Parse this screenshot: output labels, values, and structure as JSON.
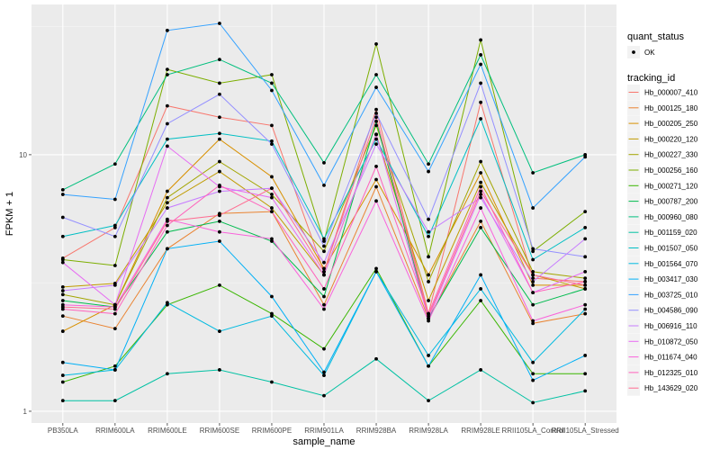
{
  "chart_data": {
    "type": "line",
    "title": "",
    "xlabel": "sample_name",
    "ylabel": "FPKM + 1",
    "y_scale": "log10",
    "ylim": [
      0.9,
      38.5
    ],
    "y_ticks": [
      1,
      10
    ],
    "y_tick_labels": [
      "1",
      "10"
    ],
    "grid": true,
    "legend_position": "right",
    "categories": [
      "PB350LA",
      "RRIM600LA",
      "RRIM600LE",
      "RRIM600SE",
      "RRIM600PE",
      "RRIM901LA",
      "RRIM928BA",
      "RRIM928LA",
      "RRIM928LE",
      "RRII105LA_Control",
      "RRII105LA_Stressed"
    ],
    "shape_legend": {
      "title": "quant_status",
      "items": [
        "OK"
      ]
    },
    "color_legend_title": "tracking_id",
    "series": [
      {
        "name": "Hb_000007_410",
        "color": "#F8766D",
        "values": [
          3.95,
          5.2,
          15.5,
          14.0,
          13.0,
          3.5,
          15.0,
          2.4,
          16.0,
          3.3,
          3.2
        ]
      },
      {
        "name": "Hb_000125_180",
        "color": "#EA8331",
        "values": [
          2.35,
          2.1,
          4.3,
          5.9,
          6.0,
          2.6,
          7.5,
          2.3,
          5.5,
          2.2,
          2.4
        ]
      },
      {
        "name": "Hb_000205_250",
        "color": "#D89000",
        "values": [
          2.05,
          2.6,
          7.2,
          11.5,
          8.2,
          3.6,
          8.0,
          3.4,
          8.5,
          3.1,
          3.1
        ]
      },
      {
        "name": "Hb_000220_120",
        "color": "#C09B00",
        "values": [
          3.05,
          3.15,
          6.5,
          8.6,
          6.2,
          3.4,
          12.0,
          2.7,
          7.8,
          3.4,
          3.0
        ]
      },
      {
        "name": "Hb_000227_330",
        "color": "#A3A500",
        "values": [
          2.85,
          2.6,
          6.8,
          9.4,
          7.0,
          4.2,
          13.0,
          3.2,
          9.4,
          3.5,
          3.3
        ]
      },
      {
        "name": "Hb_000256_160",
        "color": "#7CAE00",
        "values": [
          3.9,
          3.7,
          21.5,
          19.0,
          20.5,
          4.6,
          27.0,
          4.0,
          28.0,
          4.2,
          6.0
        ]
      },
      {
        "name": "Hb_000271_120",
        "color": "#39B600",
        "values": [
          1.3,
          1.5,
          2.6,
          3.1,
          2.4,
          1.75,
          3.6,
          1.5,
          2.7,
          1.4,
          1.4
        ]
      },
      {
        "name": "Hb_000787_200",
        "color": "#00BB4E",
        "values": [
          2.7,
          2.55,
          5.0,
          5.5,
          4.6,
          2.8,
          13.5,
          2.3,
          5.2,
          2.6,
          3.0
        ]
      },
      {
        "name": "Hb_000960_080",
        "color": "#00BF7D",
        "values": [
          7.3,
          9.2,
          20.5,
          23.5,
          19.0,
          9.3,
          20.5,
          9.2,
          24.5,
          8.5,
          10.0
        ]
      },
      {
        "name": "Hb_001159_020",
        "color": "#00C1A3",
        "values": [
          1.1,
          1.1,
          1.4,
          1.45,
          1.3,
          1.15,
          1.6,
          1.1,
          1.45,
          1.08,
          1.2
        ]
      },
      {
        "name": "Hb_001507_050",
        "color": "#00BFC4",
        "values": [
          4.8,
          5.3,
          11.5,
          12.1,
          11.3,
          4.7,
          11.5,
          4.8,
          13.8,
          3.9,
          5.2
        ]
      },
      {
        "name": "Hb_001564_070",
        "color": "#00BAE0",
        "values": [
          1.38,
          1.45,
          2.65,
          2.05,
          2.35,
          1.38,
          3.5,
          1.65,
          3.0,
          1.55,
          2.5
        ]
      },
      {
        "name": "Hb_003417_030",
        "color": "#00B0F6",
        "values": [
          1.55,
          1.45,
          4.3,
          4.6,
          2.8,
          1.42,
          3.5,
          1.5,
          3.4,
          1.32,
          1.65
        ]
      },
      {
        "name": "Hb_003725_010",
        "color": "#35A2FF",
        "values": [
          7.0,
          6.7,
          30.5,
          32.5,
          17.8,
          7.6,
          18.3,
          8.6,
          22.5,
          6.2,
          9.8
        ]
      },
      {
        "name": "Hb_004586_090",
        "color": "#9590FF",
        "values": [
          5.7,
          4.8,
          13.2,
          17.2,
          11.0,
          4.4,
          14.5,
          5.6,
          19.0,
          4.3,
          4.0
        ]
      },
      {
        "name": "Hb_006916_110",
        "color": "#C77CFF",
        "values": [
          2.95,
          3.1,
          6.2,
          7.2,
          7.4,
          3.8,
          11.0,
          5.0,
          6.8,
          3.2,
          4.7
        ]
      },
      {
        "name": "Hb_010872_050",
        "color": "#E76BF3",
        "values": [
          3.8,
          2.6,
          10.8,
          7.5,
          6.8,
          3.4,
          12.0,
          2.3,
          7.0,
          2.9,
          3.5
        ]
      },
      {
        "name": "Hb_011674_040",
        "color": "#FA62DB",
        "values": [
          2.6,
          2.55,
          5.6,
          5.0,
          4.7,
          2.5,
          6.6,
          2.25,
          6.2,
          2.25,
          2.6
        ]
      },
      {
        "name": "Hb_012325_010",
        "color": "#FF62BC",
        "values": [
          2.5,
          2.4,
          5.3,
          7.6,
          6.0,
          3.0,
          9.0,
          2.4,
          7.5,
          2.9,
          3.2
        ]
      },
      {
        "name": "Hb_143629_020",
        "color": "#FF6C91",
        "values": [
          2.55,
          2.5,
          5.5,
          5.8,
          7.4,
          3.5,
          14.0,
          2.35,
          7.2,
          3.4,
          3.1
        ]
      }
    ]
  }
}
